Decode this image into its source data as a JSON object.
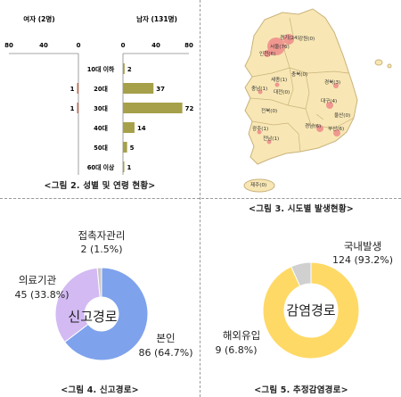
{
  "captions": {
    "fig2": "<그림 2. 성별 및 연령 현황>",
    "fig3": "<그림 3. 시도별 발생현황>",
    "fig4": "<그림 4. 신고경로>",
    "fig5": "<그림 5. 추정감염경로>"
  },
  "colors": {
    "bar_male": "#a6a04a",
    "bar_female": "#c46a4a",
    "map_land": "#f8e7b4",
    "map_border": "#c9b27a",
    "map_bubble": "#ef8a8a",
    "pie4_report": "#7ea2ec",
    "pie4_medical": "#d3baf3",
    "pie4_contact": "#c9c9c9",
    "pie5_domestic": "#ffd966",
    "pie5_overseas": "#d0d0d0"
  },
  "chart_data": [
    {
      "type": "bar",
      "orientation": "horizontal",
      "subtitles": {
        "female": "여자 (2명)",
        "male": "남자 (131명)"
      },
      "categories": [
        "10대 이하",
        "20대",
        "30대",
        "40대",
        "50대",
        "60대 이상"
      ],
      "series": [
        {
          "name": "여자 (2명)",
          "values": [
            0,
            1,
            1,
            0,
            0,
            0
          ]
        },
        {
          "name": "남자 (131명)",
          "values": [
            2,
            37,
            72,
            14,
            5,
            1
          ]
        }
      ],
      "female_ticks": [
        "80",
        "40",
        "0"
      ],
      "male_ticks": [
        "0",
        "40",
        "80"
      ],
      "xlim": [
        0,
        80
      ]
    },
    {
      "type": "map",
      "regions": [
        {
          "label": "강원(0)",
          "value": 0
        },
        {
          "label": "경기(24)",
          "value": 24
        },
        {
          "label": "서울(76)",
          "value": 76
        },
        {
          "label": "인천(6)",
          "value": 6
        },
        {
          "label": "세종(1)",
          "value": 1
        },
        {
          "label": "충북(0)",
          "value": 0
        },
        {
          "label": "충남(1)",
          "value": 1
        },
        {
          "label": "대전(0)",
          "value": 0
        },
        {
          "label": "경북(3)",
          "value": 3
        },
        {
          "label": "전북(0)",
          "value": 0
        },
        {
          "label": "대구(4)",
          "value": 4
        },
        {
          "label": "울산(0)",
          "value": 0
        },
        {
          "label": "광주(1)",
          "value": 1
        },
        {
          "label": "경남(6)",
          "value": 6
        },
        {
          "label": "부산(6)",
          "value": 6
        },
        {
          "label": "전남(1)",
          "value": 1
        },
        {
          "label": "제주(0)",
          "value": 0
        }
      ]
    },
    {
      "type": "pie",
      "donut": true,
      "center_label": "신고경로",
      "slices": [
        {
          "name": "본인",
          "count_label": "86 (64.7%)",
          "value": 86
        },
        {
          "name": "의료기관",
          "count_label": "45 (33.8%)",
          "value": 45
        },
        {
          "name": "접촉자관리",
          "count_label": "2 (1.5%)",
          "value": 2
        }
      ]
    },
    {
      "type": "pie",
      "donut": true,
      "center_label": "감염경로",
      "slices": [
        {
          "name": "국내발생",
          "count_label": "124 (93.2%)",
          "value": 124
        },
        {
          "name": "해외유입",
          "count_label": "9 (6.8%)",
          "value": 9
        }
      ]
    }
  ]
}
